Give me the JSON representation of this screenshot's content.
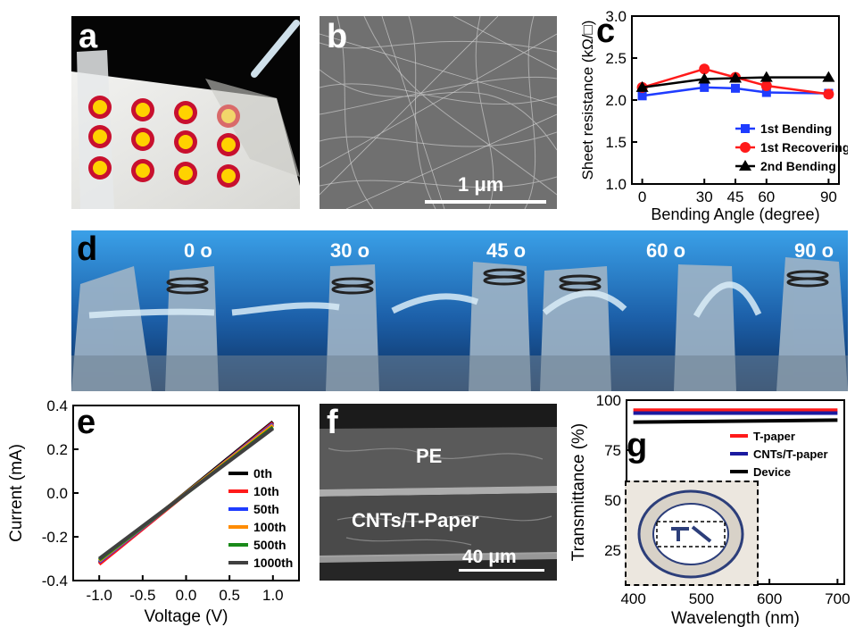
{
  "panels": {
    "a": {
      "letter": "a"
    },
    "b": {
      "letter": "b",
      "scalebar_label": "1 μm"
    },
    "c": {
      "letter": "c"
    },
    "d": {
      "letter": "d",
      "angle_labels": [
        "0 o",
        "30 o",
        "45 o",
        "60 o",
        "90 o"
      ]
    },
    "e": {
      "letter": "e"
    },
    "f": {
      "letter": "f",
      "layer_top": "PE",
      "layer_bottom": "CNTs/T-Paper",
      "scalebar_label": "40 μm"
    },
    "g": {
      "letter": "g"
    }
  },
  "chart_data": [
    {
      "id": "c",
      "type": "line",
      "xlabel": "Bending Angle (degree)",
      "ylabel": "Sheet resistance (kΩ/□)",
      "x": [
        0,
        30,
        45,
        60,
        90
      ],
      "xticks": [
        "0",
        "30",
        "45",
        "60",
        "90"
      ],
      "yticks": [
        "1.0",
        "1.5",
        "2.0",
        "2.5",
        "3.0"
      ],
      "xlim": [
        -5,
        95
      ],
      "ylim": [
        1.0,
        3.0
      ],
      "legend_position": "bottom-right",
      "series": [
        {
          "name": "1st Bending",
          "color": "#1f3cff",
          "marker": "square",
          "values": [
            2.05,
            2.15,
            2.14,
            2.09,
            2.08
          ]
        },
        {
          "name": "1st Recovering",
          "color": "#ff1a1a",
          "marker": "circle",
          "values": [
            2.15,
            2.37,
            2.27,
            2.17,
            2.07
          ]
        },
        {
          "name": "2nd Bending",
          "color": "#000000",
          "marker": "triangle",
          "values": [
            2.15,
            2.25,
            2.26,
            2.27,
            2.27
          ]
        }
      ]
    },
    {
      "id": "e",
      "type": "line",
      "xlabel": "Voltage (V)",
      "ylabel": "Current (mA)",
      "xticks": [
        "-1.0",
        "-0.5",
        "0.0",
        "0.5",
        "1.0"
      ],
      "yticks": [
        "-0.4",
        "-0.2",
        "0.0",
        "0.2",
        "0.4"
      ],
      "xlim": [
        -1.3,
        1.3
      ],
      "ylim": [
        -0.4,
        0.4
      ],
      "legend_position": "right",
      "series": [
        {
          "name": "0th",
          "color": "#000000",
          "x": [
            -1.0,
            1.0
          ],
          "values": [
            -0.32,
            0.325
          ]
        },
        {
          "name": "10th",
          "color": "#ff1a1a",
          "x": [
            -1.0,
            1.0
          ],
          "values": [
            -0.325,
            0.32
          ]
        },
        {
          "name": "50th",
          "color": "#1f3cff",
          "x": [
            -1.0,
            1.0
          ],
          "values": [
            -0.315,
            0.315
          ]
        },
        {
          "name": "100th",
          "color": "#ff8c00",
          "x": [
            -1.0,
            1.0
          ],
          "values": [
            -0.31,
            0.31
          ]
        },
        {
          "name": "500th",
          "color": "#1a8a1a",
          "x": [
            -1.0,
            1.0
          ],
          "values": [
            -0.305,
            0.3
          ]
        },
        {
          "name": "1000th",
          "color": "#404040",
          "x": [
            -1.0,
            1.0
          ],
          "values": [
            -0.3,
            0.295
          ]
        }
      ]
    },
    {
      "id": "g",
      "type": "line",
      "xlabel": "Wavelength (nm)",
      "ylabel": "Transmittance (%)",
      "xticks": [
        "400",
        "500",
        "600",
        "700"
      ],
      "yticks": [
        "25",
        "50",
        "75",
        "100"
      ],
      "xlim": [
        390,
        710
      ],
      "ylim": [
        8,
        100
      ],
      "legend_position": "top-right",
      "series": [
        {
          "name": "T-paper",
          "color": "#ff1a1a",
          "x": [
            400,
            700
          ],
          "values": [
            95,
            95
          ]
        },
        {
          "name": "CNTs/T-paper",
          "color": "#1a1aa0",
          "x": [
            400,
            700
          ],
          "values": [
            93.5,
            93.5
          ]
        },
        {
          "name": "Device",
          "color": "#000000",
          "x": [
            400,
            700
          ],
          "values": [
            89,
            90
          ]
        }
      ]
    }
  ]
}
